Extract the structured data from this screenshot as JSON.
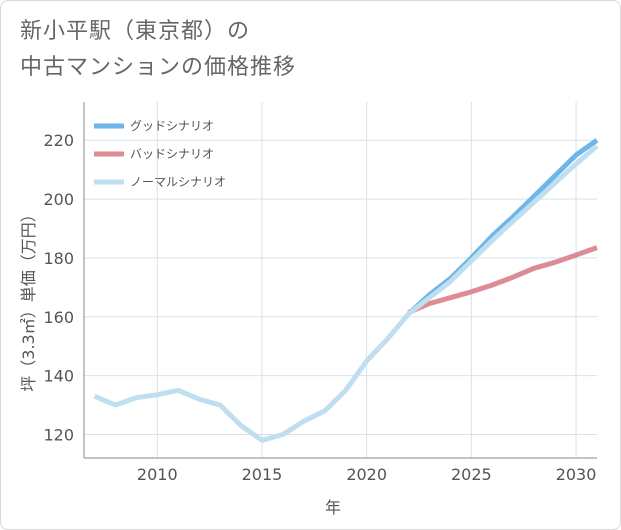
{
  "title_lines": [
    "新小平駅（東京都）の",
    "中古マンションの価格推移"
  ],
  "colors": {
    "good": "#6fb6e8",
    "bad": "#de8c94",
    "normal": "#bfdff0",
    "grid": "#d7e2ea",
    "axis": "#888888"
  },
  "chart_data": {
    "type": "line",
    "xlabel": "年",
    "ylabel": "坪（3.3㎡）単価（万円）",
    "xlim": [
      2006.5,
      2031
    ],
    "ylim": [
      112,
      233
    ],
    "xticks": [
      2010,
      2015,
      2020,
      2025,
      2030
    ],
    "yticks": [
      120,
      140,
      160,
      180,
      200,
      220
    ],
    "grid": true,
    "legend_position": "top-left",
    "series": [
      {
        "name": "グッドシナリオ",
        "color_key": "good",
        "points": [
          [
            2022,
            161
          ],
          [
            2023,
            167.5
          ],
          [
            2024,
            173
          ],
          [
            2025,
            180
          ],
          [
            2026,
            187.5
          ],
          [
            2027,
            194
          ],
          [
            2028,
            201
          ],
          [
            2029,
            208
          ],
          [
            2030,
            215
          ],
          [
            2031,
            220
          ]
        ]
      },
      {
        "name": "バッドシナリオ",
        "color_key": "bad",
        "points": [
          [
            2022,
            161.5
          ],
          [
            2023,
            164.5
          ],
          [
            2024,
            166.5
          ],
          [
            2025,
            168.5
          ],
          [
            2026,
            170.8
          ],
          [
            2027,
            173.5
          ],
          [
            2028,
            176.5
          ],
          [
            2029,
            178.5
          ],
          [
            2030,
            181
          ],
          [
            2031,
            183.5
          ]
        ]
      },
      {
        "name": "ノーマルシナリオ",
        "color_key": "normal",
        "points": [
          [
            2007,
            133
          ],
          [
            2008,
            130
          ],
          [
            2009,
            132.5
          ],
          [
            2010,
            133.5
          ],
          [
            2011,
            135
          ],
          [
            2012,
            132
          ],
          [
            2013,
            130
          ],
          [
            2014,
            123
          ],
          [
            2015,
            118
          ],
          [
            2016,
            120
          ],
          [
            2017,
            124.5
          ],
          [
            2018,
            128
          ],
          [
            2019,
            135
          ],
          [
            2020,
            145
          ],
          [
            2021,
            152.5
          ],
          [
            2022,
            161
          ],
          [
            2023,
            166.5
          ],
          [
            2024,
            172
          ],
          [
            2025,
            179
          ],
          [
            2026,
            186
          ],
          [
            2027,
            192.5
          ],
          [
            2028,
            199
          ],
          [
            2029,
            205.5
          ],
          [
            2030,
            212
          ],
          [
            2031,
            218
          ]
        ]
      }
    ]
  }
}
